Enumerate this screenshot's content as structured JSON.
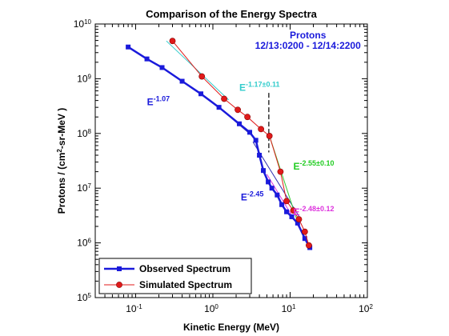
{
  "chart_data": {
    "type": "line",
    "title": "Comparison of the Energy Spectra",
    "xlabel": "Kinetic Energy (MeV)",
    "ylabel": {
      "prefix": "Protons / (cm",
      "sup": "2",
      "suffix": "-sr-MeV )"
    },
    "x_scale": "log",
    "y_scale": "log",
    "xlim": [
      0.03,
      100
    ],
    "ylim": [
      100000,
      10000000000
    ],
    "x_ticks": [
      {
        "value": 0.1,
        "base": "10",
        "exp": "-1"
      },
      {
        "value": 1,
        "base": "10",
        "exp": "0"
      },
      {
        "value": 10,
        "base": "10",
        "exp": "1"
      },
      {
        "value": 100,
        "base": "10",
        "exp": "2"
      }
    ],
    "y_ticks": [
      {
        "value": 100000,
        "base": "10",
        "exp": "5"
      },
      {
        "value": 1000000,
        "base": "10",
        "exp": "6"
      },
      {
        "value": 10000000,
        "base": "10",
        "exp": "7"
      },
      {
        "value": 100000000,
        "base": "10",
        "exp": "8"
      },
      {
        "value": 1000000000,
        "base": "10",
        "exp": "9"
      },
      {
        "value": 10000000000,
        "base": "10",
        "exp": "10"
      }
    ],
    "grid": false,
    "legend_position": "bottom-left",
    "series": [
      {
        "name": "Observed Spectrum",
        "color": "#1a1adb",
        "marker": "square",
        "x": [
          0.08,
          0.14,
          0.22,
          0.4,
          0.7,
          1.2,
          2.2,
          3.0,
          3.6,
          4.0,
          4.5,
          5.2,
          5.8,
          6.8,
          7.8,
          9.0,
          10.5,
          12.5,
          15.5,
          18.0
        ],
        "y": [
          3800000000,
          2300000000,
          1600000000,
          900000000,
          530000000,
          300000000,
          150000000,
          105000000,
          75000000,
          40000000,
          21000000,
          13000000,
          10000000,
          7500000,
          5000000,
          3700000,
          3000000,
          2300000,
          1200000,
          820000
        ]
      },
      {
        "name": "Simulated Spectrum",
        "color": "#e01a1a",
        "marker": "circle",
        "x": [
          0.3,
          0.72,
          1.4,
          2.1,
          2.8,
          4.2,
          5.4,
          7.5,
          9.0,
          11.0,
          13.0,
          15.5,
          17.5
        ],
        "y": [
          4900000000,
          1100000000,
          430000000,
          270000000,
          200000000,
          120000000,
          90000000,
          20000000,
          5800000,
          3900000,
          2700000,
          1600000,
          900000
        ]
      }
    ],
    "fit_lines": [
      {
        "color": "#33cccc",
        "x": [
          0.25,
          1.6
        ],
        "y": [
          4900000000,
          410000000
        ]
      },
      {
        "color": "#2d2dae",
        "x": [
          1.0,
          3.1
        ],
        "y": [
          370000000,
          95000000
        ]
      },
      {
        "color": "#2d2dae",
        "x": [
          3.3,
          14.0
        ],
        "y": [
          70000000,
          2600000
        ]
      },
      {
        "color": "#33cc33",
        "x": [
          5.4,
          12.5
        ],
        "y": [
          90000000,
          2400000
        ]
      },
      {
        "color": "#dd33dd",
        "x": [
          5.0,
          18.0
        ],
        "y": [
          18000000,
          900000
        ]
      }
    ],
    "divider": {
      "x": 5.3,
      "y_from": 550000000,
      "y_to": 45000000
    },
    "annotations": [
      {
        "text": "Protons",
        "color": "#1a1adb",
        "x": 17,
        "y": 5500000000
      },
      {
        "text": "12/13:0200 - 12/14:2200",
        "color": "#1a1adb",
        "x": 17,
        "y": 3500000000
      },
      {
        "base": "E",
        "sup": "-1.07",
        "color": "#1a1adb",
        "x": 0.14,
        "y": 330000000
      },
      {
        "base": "E",
        "sup": "-1.17±0.11",
        "color": "#33cccc",
        "x": 2.2,
        "y": 600000000
      },
      {
        "base": "E",
        "sup": "-2.55±0.10",
        "color": "#22cc22",
        "x": 11,
        "y": 22000000
      },
      {
        "base": "E",
        "sup": "-2.45",
        "color": "#1a1adb",
        "x": 2.3,
        "y": 6000000
      },
      {
        "base": "E",
        "sup": "-2.48±0.12",
        "color": "#dd33dd",
        "x": 11,
        "y": 3200000
      }
    ]
  }
}
